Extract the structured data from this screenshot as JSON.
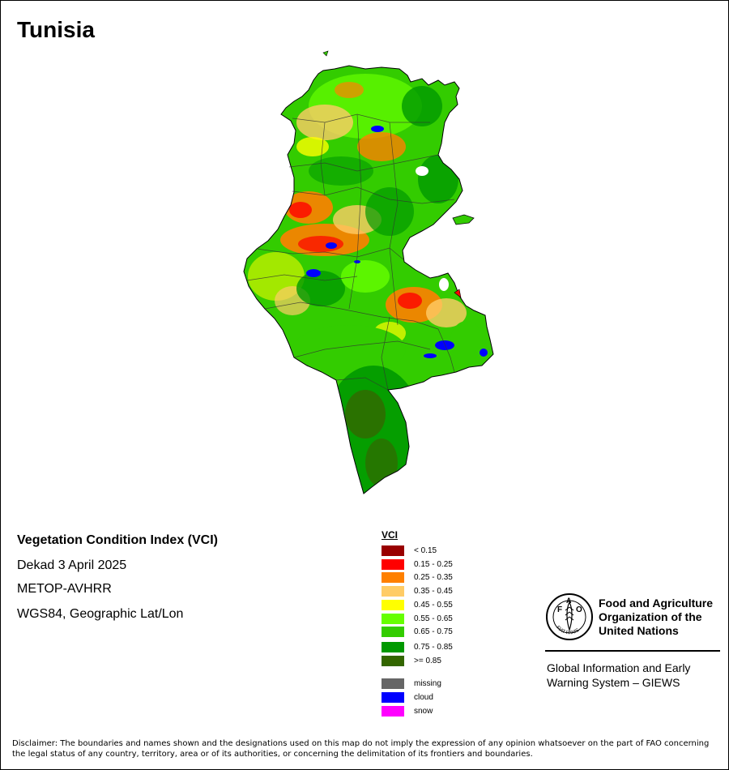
{
  "map": {
    "title": "Tunisia",
    "product": {
      "heading": "Vegetation Condition Index (VCI)",
      "period": "Dekad 3 April 2025",
      "sensor": "METOP-AVHRR",
      "projection": "WGS84, Geographic Lat/Lon"
    }
  },
  "legend": {
    "title": "VCI",
    "classes": [
      {
        "label": "< 0.15",
        "color": "#990000"
      },
      {
        "label": "0.15 - 0.25",
        "color": "#ff0000"
      },
      {
        "label": "0.25 - 0.35",
        "color": "#ff8000"
      },
      {
        "label": "0.35 - 0.45",
        "color": "#ffcc66"
      },
      {
        "label": "0.45 - 0.55",
        "color": "#ffff00"
      },
      {
        "label": "0.55 - 0.65",
        "color": "#66ff00"
      },
      {
        "label": "0.65 - 0.75",
        "color": "#33cc00"
      },
      {
        "label": "0.75 - 0.85",
        "color": "#009900"
      },
      {
        "label": ">= 0.85",
        "color": "#336600"
      }
    ],
    "other": [
      {
        "label": "missing",
        "color": "#666666"
      },
      {
        "label": "cloud",
        "color": "#0000ff"
      },
      {
        "label": "snow",
        "color": "#ff00ff"
      }
    ]
  },
  "organization": {
    "emblem_letters": "FAO",
    "emblem_motto": "FIAT PANIS",
    "name_line1": "Food and Agriculture",
    "name_line2": "Organization of the",
    "name_line3": "United Nations",
    "system_line1": "Global Information and Early",
    "system_line2": "Warning System – GIEWS"
  },
  "disclaimer": "Disclaimer: The boundaries and names shown and the designations used on this map do not imply the expression of any opinion whatsoever on the part of FAO concerning the legal status of any country, territory, area or of its authorities, or concerning the delimitation of its frontiers and boundaries."
}
